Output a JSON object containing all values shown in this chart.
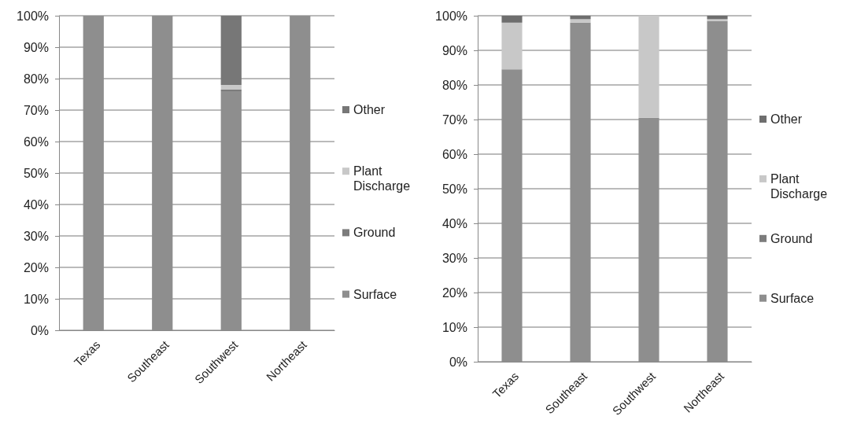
{
  "chart_data": [
    {
      "type": "bar",
      "stacked": true,
      "categories": [
        "Texas",
        "Southeast",
        "Southwest",
        "Northeast"
      ],
      "ylim": [
        0,
        100
      ],
      "yticks": [
        {
          "value": 0,
          "label": "0%"
        },
        {
          "value": 10,
          "label": "10%"
        },
        {
          "value": 20,
          "label": "20%"
        },
        {
          "value": 30,
          "label": "30%"
        },
        {
          "value": 40,
          "label": "40%"
        },
        {
          "value": 50,
          "label": "50%"
        },
        {
          "value": 60,
          "label": "60%"
        },
        {
          "value": 70,
          "label": "70%"
        },
        {
          "value": 80,
          "label": "80%"
        },
        {
          "value": 90,
          "label": "90%"
        },
        {
          "value": 100,
          "label": "100%"
        }
      ],
      "grid": "y",
      "legend": "right",
      "series": [
        {
          "name": "Surface",
          "color": "#8e8e8e",
          "values": [
            100,
            100,
            76,
            100
          ]
        },
        {
          "name": "Ground",
          "color": "#7c7c7c",
          "values": [
            0,
            0,
            0.5,
            0
          ]
        },
        {
          "name": "Plant Discharge",
          "color": "#c8c8c8",
          "values": [
            0,
            0,
            1.5,
            0
          ]
        },
        {
          "name": "Other",
          "color": "#777777",
          "values": [
            0,
            0,
            22,
            0
          ]
        }
      ]
    },
    {
      "type": "bar",
      "stacked": true,
      "categories": [
        "Texas",
        "Southeast",
        "Southwest",
        "Northeast"
      ],
      "ylim": [
        0,
        100
      ],
      "yticks": [
        {
          "value": 0,
          "label": "0%"
        },
        {
          "value": 10,
          "label": "10%"
        },
        {
          "value": 20,
          "label": "20%"
        },
        {
          "value": 30,
          "label": "30%"
        },
        {
          "value": 40,
          "label": "40%"
        },
        {
          "value": 50,
          "label": "50%"
        },
        {
          "value": 60,
          "label": "60%"
        },
        {
          "value": 70,
          "label": "70%"
        },
        {
          "value": 80,
          "label": "80%"
        },
        {
          "value": 90,
          "label": "90%"
        },
        {
          "value": 100,
          "label": "100%"
        }
      ],
      "grid": "y",
      "legend": "right",
      "series": [
        {
          "name": "Surface",
          "color": "#8e8e8e",
          "values": [
            84.5,
            98,
            70.5,
            98.5
          ]
        },
        {
          "name": "Ground",
          "color": "#7c7c7c",
          "values": [
            0,
            0,
            0,
            0
          ]
        },
        {
          "name": "Plant Discharge",
          "color": "#c8c8c8",
          "values": [
            13.5,
            1,
            29.5,
            0.5
          ]
        },
        {
          "name": "Other",
          "color": "#6e6e6e",
          "values": [
            2,
            1,
            0,
            1
          ]
        }
      ]
    }
  ]
}
